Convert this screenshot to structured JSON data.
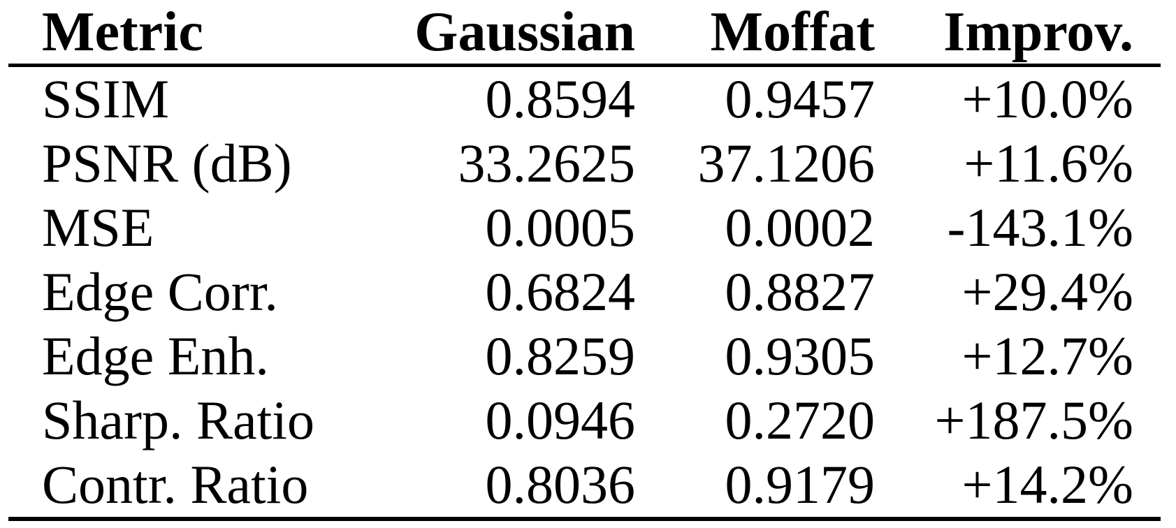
{
  "colors": {
    "text": "#000000",
    "background": "#ffffff",
    "rule": "#000000"
  },
  "table": {
    "columns": [
      {
        "label": "Metric",
        "align": "left"
      },
      {
        "label": "Gaussian",
        "align": "right"
      },
      {
        "label": "Moffat",
        "align": "right"
      },
      {
        "label": "Improv.",
        "align": "right"
      }
    ],
    "rows": [
      [
        "SSIM",
        "0.8594",
        "0.9457",
        "+10.0%"
      ],
      [
        "PSNR (dB)",
        "33.2625",
        "37.1206",
        "+11.6%"
      ],
      [
        "MSE",
        "0.0005",
        "0.0002",
        "-143.1%"
      ],
      [
        "Edge Corr.",
        "0.6824",
        "0.8827",
        "+29.4%"
      ],
      [
        "Edge Enh.",
        "0.8259",
        "0.9305",
        "+12.7%"
      ],
      [
        "Sharp. Ratio",
        "0.0946",
        "0.2720",
        "+187.5%"
      ],
      [
        "Contr. Ratio",
        "0.8036",
        "0.9179",
        "+14.2%"
      ]
    ]
  },
  "chart_data": {
    "type": "table",
    "title": "",
    "columns": [
      "Metric",
      "Gaussian",
      "Moffat",
      "Improv."
    ],
    "records": [
      {
        "metric": "SSIM",
        "gaussian": 0.8594,
        "moffat": 0.9457,
        "improvement_pct": 10.0
      },
      {
        "metric": "PSNR (dB)",
        "gaussian": 33.2625,
        "moffat": 37.1206,
        "improvement_pct": 11.6
      },
      {
        "metric": "MSE",
        "gaussian": 0.0005,
        "moffat": 0.0002,
        "improvement_pct": -143.1
      },
      {
        "metric": "Edge Corr.",
        "gaussian": 0.6824,
        "moffat": 0.8827,
        "improvement_pct": 29.4
      },
      {
        "metric": "Edge Enh.",
        "gaussian": 0.8259,
        "moffat": 0.9305,
        "improvement_pct": 12.7
      },
      {
        "metric": "Sharp. Ratio",
        "gaussian": 0.0946,
        "moffat": 0.272,
        "improvement_pct": 187.5
      },
      {
        "metric": "Contr. Ratio",
        "gaussian": 0.8036,
        "moffat": 0.9179,
        "improvement_pct": 14.2
      }
    ]
  }
}
